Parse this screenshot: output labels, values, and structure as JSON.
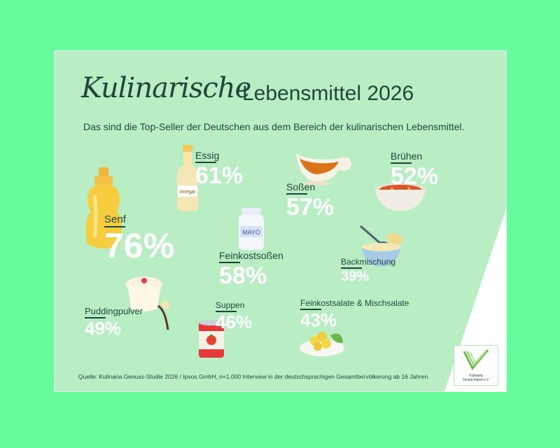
{
  "title": {
    "script": "Kulinarische",
    "main": "Lebensmittel 2026"
  },
  "subtitle": "Das sind die Top-Seller der Deutschen aus dem Bereich der kulinarischen Lebensmittel.",
  "source": "Quelle: Kulinaria Genuss-Studie 2026 / Ipsos GmbH, n=1.000 Interview in der deutschsprachigen Gesamtbervölkerung ab 16 Jahren.",
  "logo": {
    "line1": "Kulinaria",
    "line2": "Deutschland e.V."
  },
  "colors": {
    "background": "#66fb9d",
    "card": "#b9eec5",
    "text": "#20463a",
    "value": "#ffffff"
  },
  "chart_data": {
    "type": "table",
    "title": "Kulinarische Lebensmittel 2026",
    "unit": "%",
    "categories": [
      "Senf",
      "Essig",
      "Feinkostsoßen",
      "Soßen",
      "Brühen",
      "Backmischung",
      "Puddingpulver",
      "Suppen",
      "Feinkostsalate & Mischsalate"
    ],
    "values": [
      76,
      61,
      58,
      57,
      52,
      39,
      49,
      46,
      43
    ],
    "value_labels": [
      "76%",
      "61%",
      "58%",
      "57%",
      "52%",
      "39%",
      "49%",
      "46%",
      "43%"
    ]
  }
}
